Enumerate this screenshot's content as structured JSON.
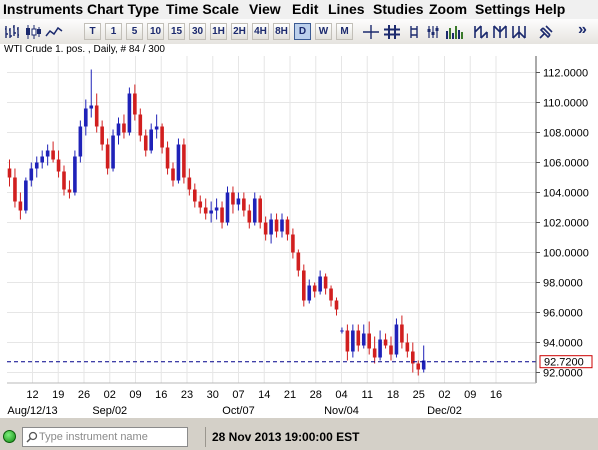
{
  "menu": [
    "Instruments",
    "Chart Type",
    "Time Scale",
    "View",
    "Edit",
    "Lines",
    "Studies",
    "Zoom",
    "Settings",
    "Help"
  ],
  "toolbar": {
    "time_buttons": [
      "T",
      "1",
      "5",
      "10",
      "15",
      "30",
      "1H",
      "2H",
      "4H",
      "8H",
      "D",
      "W",
      "M"
    ],
    "active_button": "D",
    "overflow_label": "»"
  },
  "chart": {
    "header": "WTI Crude 1. pos. , Daily, # 84 / 300",
    "current_price_label": "92.7200",
    "colors": {
      "up": "#1f22b8",
      "down": "#d11f1f",
      "price_line": "#00008b",
      "price_box": "#cc0000"
    }
  },
  "chart_data": {
    "type": "candlestick",
    "instrument": "WTI Crude 1. pos.",
    "interval": "Daily",
    "ylim": [
      91.5,
      112.5
    ],
    "y_ticks": [
      "112.0000",
      "110.0000",
      "108.0000",
      "106.0000",
      "104.0000",
      "102.0000",
      "100.0000",
      "98.0000",
      "96.0000",
      "94.0000",
      "92.0000"
    ],
    "x_tick_labels": [
      "12",
      "19",
      "26",
      "02",
      "09",
      "16",
      "23",
      "30",
      "07",
      "14",
      "21",
      "28",
      "04",
      "11",
      "18",
      "25",
      "02",
      "09",
      "16"
    ],
    "x_month_labels": [
      {
        "label": "Aug/12/13",
        "at": "12"
      },
      {
        "label": "Sep/02",
        "at": "02"
      },
      {
        "label": "Oct/07",
        "at": "07"
      },
      {
        "label": "Nov/04",
        "at": "04"
      },
      {
        "label": "Dec/02",
        "at": "02"
      }
    ],
    "current_price": 92.72,
    "candles": [
      {
        "o": 105.6,
        "h": 106.2,
        "l": 104.4,
        "c": 105.0
      },
      {
        "o": 105.0,
        "h": 105.6,
        "l": 103.0,
        "c": 103.4
      },
      {
        "o": 103.4,
        "h": 104.0,
        "l": 102.2,
        "c": 102.8
      },
      {
        "o": 102.8,
        "h": 105.0,
        "l": 102.6,
        "c": 104.8
      },
      {
        "o": 104.8,
        "h": 106.0,
        "l": 104.4,
        "c": 105.6
      },
      {
        "o": 105.6,
        "h": 106.4,
        "l": 105.0,
        "c": 106.0
      },
      {
        "o": 106.0,
        "h": 106.8,
        "l": 105.6,
        "c": 106.4
      },
      {
        "o": 106.4,
        "h": 107.2,
        "l": 105.8,
        "c": 106.8
      },
      {
        "o": 106.8,
        "h": 107.4,
        "l": 106.0,
        "c": 106.2
      },
      {
        "o": 106.2,
        "h": 106.8,
        "l": 105.0,
        "c": 105.4
      },
      {
        "o": 105.4,
        "h": 105.8,
        "l": 103.8,
        "c": 104.2
      },
      {
        "o": 104.2,
        "h": 104.8,
        "l": 103.6,
        "c": 104.0
      },
      {
        "o": 104.0,
        "h": 106.8,
        "l": 103.8,
        "c": 106.4
      },
      {
        "o": 106.4,
        "h": 108.8,
        "l": 106.0,
        "c": 108.4
      },
      {
        "o": 108.4,
        "h": 110.2,
        "l": 107.8,
        "c": 109.6
      },
      {
        "o": 109.6,
        "h": 112.2,
        "l": 109.0,
        "c": 109.8
      },
      {
        "o": 109.8,
        "h": 110.6,
        "l": 108.0,
        "c": 108.4
      },
      {
        "o": 108.4,
        "h": 108.8,
        "l": 106.8,
        "c": 107.2
      },
      {
        "o": 107.2,
        "h": 107.6,
        "l": 105.2,
        "c": 105.6
      },
      {
        "o": 105.6,
        "h": 108.2,
        "l": 105.4,
        "c": 107.8
      },
      {
        "o": 107.8,
        "h": 109.0,
        "l": 107.2,
        "c": 108.6
      },
      {
        "o": 108.6,
        "h": 109.2,
        "l": 107.6,
        "c": 108.0
      },
      {
        "o": 108.0,
        "h": 111.0,
        "l": 107.8,
        "c": 110.6
      },
      {
        "o": 110.6,
        "h": 111.2,
        "l": 108.8,
        "c": 109.2
      },
      {
        "o": 109.2,
        "h": 109.6,
        "l": 107.4,
        "c": 107.8
      },
      {
        "o": 107.8,
        "h": 108.2,
        "l": 106.4,
        "c": 106.8
      },
      {
        "o": 106.8,
        "h": 108.6,
        "l": 106.6,
        "c": 108.2
      },
      {
        "o": 108.2,
        "h": 109.2,
        "l": 107.6,
        "c": 108.4
      },
      {
        "o": 108.4,
        "h": 108.6,
        "l": 106.6,
        "c": 107.0
      },
      {
        "o": 107.0,
        "h": 107.4,
        "l": 105.2,
        "c": 105.6
      },
      {
        "o": 105.6,
        "h": 106.0,
        "l": 104.4,
        "c": 104.8
      },
      {
        "o": 104.8,
        "h": 107.6,
        "l": 104.6,
        "c": 107.2
      },
      {
        "o": 107.2,
        "h": 107.6,
        "l": 104.6,
        "c": 105.0
      },
      {
        "o": 105.0,
        "h": 105.6,
        "l": 103.8,
        "c": 104.2
      },
      {
        "o": 104.2,
        "h": 104.6,
        "l": 103.0,
        "c": 103.4
      },
      {
        "o": 103.4,
        "h": 103.8,
        "l": 102.6,
        "c": 103.0
      },
      {
        "o": 103.0,
        "h": 103.6,
        "l": 102.2,
        "c": 102.6
      },
      {
        "o": 102.6,
        "h": 103.4,
        "l": 102.0,
        "c": 102.8
      },
      {
        "o": 102.8,
        "h": 103.6,
        "l": 102.2,
        "c": 103.0
      },
      {
        "o": 103.0,
        "h": 103.4,
        "l": 101.6,
        "c": 102.0
      },
      {
        "o": 102.0,
        "h": 104.4,
        "l": 101.8,
        "c": 104.0
      },
      {
        "o": 104.0,
        "h": 104.4,
        "l": 102.6,
        "c": 103.2
      },
      {
        "o": 103.2,
        "h": 104.0,
        "l": 102.8,
        "c": 103.6
      },
      {
        "o": 103.6,
        "h": 104.0,
        "l": 102.4,
        "c": 102.8
      },
      {
        "o": 102.8,
        "h": 103.2,
        "l": 101.6,
        "c": 102.0
      },
      {
        "o": 102.0,
        "h": 104.0,
        "l": 101.8,
        "c": 103.6
      },
      {
        "o": 103.6,
        "h": 103.8,
        "l": 101.6,
        "c": 102.0
      },
      {
        "o": 102.0,
        "h": 102.4,
        "l": 100.8,
        "c": 101.2
      },
      {
        "o": 101.2,
        "h": 102.6,
        "l": 100.6,
        "c": 102.2
      },
      {
        "o": 102.2,
        "h": 102.6,
        "l": 101.0,
        "c": 101.4
      },
      {
        "o": 101.4,
        "h": 102.6,
        "l": 101.0,
        "c": 102.2
      },
      {
        "o": 102.2,
        "h": 102.4,
        "l": 100.8,
        "c": 101.2
      },
      {
        "o": 101.2,
        "h": 101.6,
        "l": 99.6,
        "c": 100.0
      },
      {
        "o": 100.0,
        "h": 100.2,
        "l": 98.4,
        "c": 98.8
      },
      {
        "o": 98.8,
        "h": 99.2,
        "l": 96.4,
        "c": 96.8
      },
      {
        "o": 96.8,
        "h": 98.2,
        "l": 96.6,
        "c": 97.8
      },
      {
        "o": 97.8,
        "h": 98.0,
        "l": 97.0,
        "c": 97.4
      },
      {
        "o": 97.4,
        "h": 98.8,
        "l": 97.2,
        "c": 98.4
      },
      {
        "o": 98.4,
        "h": 98.6,
        "l": 97.2,
        "c": 97.6
      },
      {
        "o": 97.6,
        "h": 97.8,
        "l": 96.4,
        "c": 96.8
      },
      {
        "o": 96.8,
        "h": 97.0,
        "l": 95.8,
        "c": 96.2
      },
      {
        "o": 94.8,
        "h": 95.0,
        "l": 94.6,
        "c": 94.8
      },
      {
        "o": 94.8,
        "h": 95.2,
        "l": 92.8,
        "c": 93.4
      },
      {
        "o": 93.4,
        "h": 95.2,
        "l": 93.0,
        "c": 94.8
      },
      {
        "o": 94.8,
        "h": 95.2,
        "l": 93.4,
        "c": 93.8
      },
      {
        "o": 93.8,
        "h": 95.2,
        "l": 93.6,
        "c": 94.6
      },
      {
        "o": 94.6,
        "h": 95.4,
        "l": 93.2,
        "c": 93.6
      },
      {
        "o": 93.6,
        "h": 94.4,
        "l": 92.6,
        "c": 93.0
      },
      {
        "o": 93.0,
        "h": 94.8,
        "l": 92.8,
        "c": 94.2
      },
      {
        "o": 94.2,
        "h": 94.6,
        "l": 93.6,
        "c": 93.8
      },
      {
        "o": 93.8,
        "h": 94.4,
        "l": 92.8,
        "c": 93.2
      },
      {
        "o": 93.2,
        "h": 95.6,
        "l": 93.0,
        "c": 95.2
      },
      {
        "o": 95.2,
        "h": 95.8,
        "l": 93.6,
        "c": 94.0
      },
      {
        "o": 94.0,
        "h": 94.6,
        "l": 93.0,
        "c": 93.4
      },
      {
        "o": 93.4,
        "h": 94.0,
        "l": 92.0,
        "c": 92.6
      },
      {
        "o": 92.6,
        "h": 92.8,
        "l": 91.8,
        "c": 92.2
      },
      {
        "o": 92.2,
        "h": 93.8,
        "l": 92.0,
        "c": 92.8
      }
    ]
  },
  "status": {
    "search_placeholder": "Type instrument name",
    "timestamp": "28 Nov 2013 19:00:00 EST"
  }
}
